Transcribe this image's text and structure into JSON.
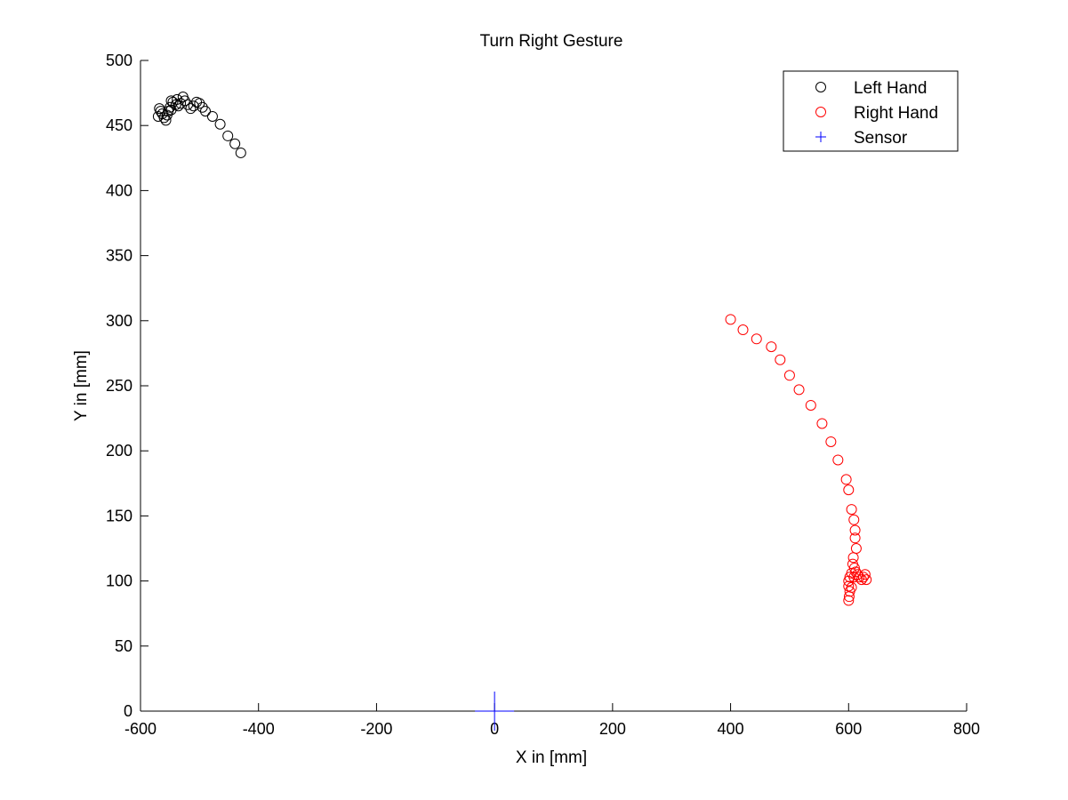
{
  "chart_data": {
    "type": "scatter",
    "title": "Turn Right Gesture",
    "xlabel": "X in [mm]",
    "ylabel": "Y in [mm]",
    "xlim": [
      -600,
      800
    ],
    "ylim": [
      0,
      500
    ],
    "xticks": [
      -600,
      -400,
      -200,
      0,
      200,
      400,
      600,
      800
    ],
    "yticks": [
      0,
      50,
      100,
      150,
      200,
      250,
      300,
      350,
      400,
      450,
      500
    ],
    "xtick_labels": [
      "-600",
      "-400",
      "-200",
      "0",
      "200",
      "400",
      "600",
      "800"
    ],
    "ytick_labels": [
      "0",
      "50",
      "100",
      "150",
      "200",
      "250",
      "300",
      "350",
      "400",
      "450",
      "500"
    ],
    "grid": false,
    "legend_position": "top-right",
    "series": [
      {
        "name": "Left Hand",
        "marker": "circle",
        "color": "#000000",
        "points": [
          [
            -430,
            429
          ],
          [
            -440,
            436
          ],
          [
            -452,
            442
          ],
          [
            -465,
            451
          ],
          [
            -478,
            457
          ],
          [
            -490,
            461
          ],
          [
            -495,
            464
          ],
          [
            -500,
            467
          ],
          [
            -505,
            468
          ],
          [
            -510,
            465
          ],
          [
            -515,
            463
          ],
          [
            -520,
            466
          ],
          [
            -525,
            469
          ],
          [
            -528,
            472
          ],
          [
            -532,
            467
          ],
          [
            -536,
            465
          ],
          [
            -540,
            466
          ],
          [
            -545,
            468
          ],
          [
            -548,
            469
          ],
          [
            -550,
            464
          ],
          [
            -553,
            461
          ],
          [
            -555,
            458
          ],
          [
            -557,
            454
          ],
          [
            -560,
            456
          ],
          [
            -563,
            459
          ],
          [
            -566,
            461
          ],
          [
            -568,
            463
          ],
          [
            -570,
            457
          ],
          [
            -548,
            462
          ],
          [
            -538,
            470
          ]
        ]
      },
      {
        "name": "Right Hand",
        "marker": "circle",
        "color": "#ff0000",
        "points": [
          [
            400,
            301
          ],
          [
            421,
            293
          ],
          [
            444,
            286
          ],
          [
            469,
            280
          ],
          [
            484,
            270
          ],
          [
            500,
            258
          ],
          [
            516,
            247
          ],
          [
            536,
            235
          ],
          [
            555,
            221
          ],
          [
            570,
            207
          ],
          [
            582,
            193
          ],
          [
            596,
            178
          ],
          [
            600,
            170
          ],
          [
            605,
            155
          ],
          [
            609,
            147
          ],
          [
            611,
            139
          ],
          [
            611,
            133
          ],
          [
            613,
            125
          ],
          [
            608,
            118
          ],
          [
            607,
            113
          ],
          [
            610,
            110
          ],
          [
            612,
            107
          ],
          [
            615,
            105
          ],
          [
            618,
            103
          ],
          [
            625,
            103
          ],
          [
            628,
            105
          ],
          [
            630,
            101
          ],
          [
            622,
            101
          ],
          [
            605,
            106
          ],
          [
            602,
            103
          ],
          [
            600,
            100
          ],
          [
            600,
            96
          ],
          [
            602,
            92
          ],
          [
            601,
            88
          ],
          [
            600,
            85
          ],
          [
            605,
            95
          ],
          [
            609,
            103
          ]
        ]
      },
      {
        "name": "Sensor",
        "marker": "plus",
        "color": "#0000ff",
        "points": [
          [
            0,
            0
          ]
        ]
      }
    ]
  }
}
